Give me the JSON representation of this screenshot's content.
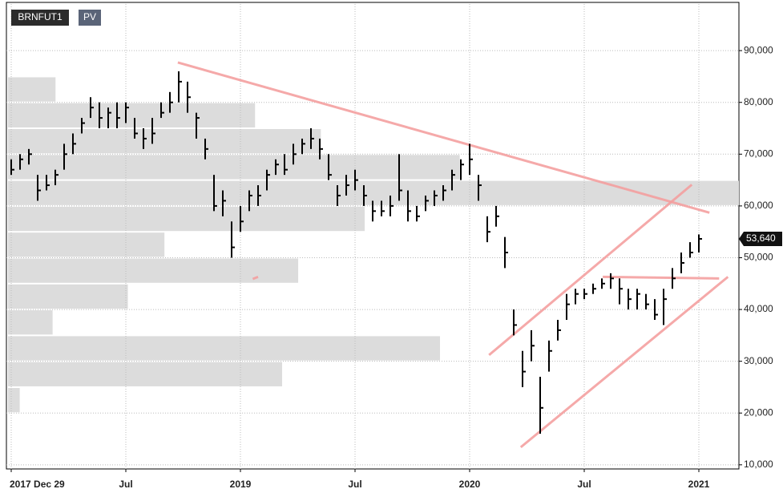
{
  "chart_data": {
    "type": "ohlc",
    "symbol": "BRNFUT1",
    "indicator": "PV",
    "categories": [
      "2017 Dec 29",
      null,
      null,
      null,
      null,
      null,
      null,
      null,
      null,
      null,
      null,
      null,
      null,
      "Jul",
      null,
      null,
      null,
      null,
      null,
      null,
      null,
      null,
      null,
      null,
      null,
      null,
      "2019",
      null,
      null,
      null,
      null,
      null,
      null,
      null,
      null,
      null,
      null,
      null,
      null,
      "Jul",
      null,
      null,
      null,
      null,
      null,
      null,
      null,
      null,
      null,
      null,
      null,
      null,
      "2020",
      null,
      null,
      null,
      null,
      null,
      null,
      null,
      null,
      null,
      null,
      null,
      null,
      "Jul",
      null,
      null,
      null,
      null,
      null,
      null,
      null,
      null,
      null,
      null,
      null,
      null,
      "2021",
      null,
      null,
      null,
      null
    ],
    "high": [
      69000,
      70000,
      71000,
      66000,
      66000,
      67000,
      72000,
      74000,
      77000,
      81000,
      80000,
      79000,
      80000,
      80000,
      77000,
      75000,
      77000,
      80000,
      82000,
      86000,
      84000,
      78000,
      73000,
      66000,
      63000,
      57000,
      60000,
      63000,
      64000,
      67000,
      69000,
      70000,
      72000,
      73000,
      75000,
      73000,
      70000,
      64000,
      66000,
      67000,
      64000,
      61000,
      61000,
      62000,
      70000,
      63000,
      60000,
      62000,
      63000,
      64000,
      67000,
      69000,
      72000,
      66000,
      58000,
      60000,
      54000,
      40000,
      32000,
      36000,
      27000,
      34000,
      38000,
      43000,
      44000,
      44000,
      45000,
      46000,
      47000,
      46000,
      44000,
      44000,
      43000,
      42000,
      44000,
      48000,
      51000,
      53000,
      54500,
      null,
      null,
      null,
      null
    ],
    "low": [
      66000,
      67000,
      68000,
      61000,
      63000,
      64000,
      67000,
      70000,
      74000,
      77000,
      75000,
      75000,
      75000,
      76000,
      73000,
      71000,
      72000,
      77000,
      78000,
      80000,
      78000,
      73000,
      69000,
      59000,
      58000,
      50000,
      55000,
      59000,
      60000,
      63000,
      66000,
      66000,
      68000,
      70000,
      71000,
      69000,
      65000,
      60000,
      62000,
      63000,
      60000,
      57000,
      58000,
      58000,
      61000,
      57000,
      57000,
      59000,
      60000,
      61000,
      63000,
      65000,
      66000,
      61000,
      53000,
      56000,
      48000,
      35000,
      25000,
      30000,
      16000,
      28000,
      34000,
      38000,
      41000,
      42000,
      43000,
      44000,
      44000,
      41000,
      40000,
      40000,
      40000,
      38000,
      37000,
      44000,
      47000,
      50000,
      51000,
      null,
      null,
      null,
      null
    ],
    "close": [
      67000,
      69000,
      70000,
      63000,
      64000,
      66000,
      70000,
      72000,
      76000,
      79000,
      77000,
      78000,
      77000,
      79000,
      74000,
      73000,
      74000,
      78000,
      80000,
      84000,
      81000,
      77000,
      71000,
      60000,
      61000,
      52000,
      57000,
      62000,
      62000,
      66000,
      68000,
      67000,
      70000,
      72000,
      73000,
      71000,
      66000,
      62000,
      64000,
      65000,
      62000,
      59000,
      59000,
      60000,
      63000,
      59000,
      58000,
      61000,
      62000,
      63000,
      66000,
      68000,
      69000,
      64000,
      55000,
      58000,
      51000,
      37000,
      28000,
      33000,
      21000,
      32000,
      36000,
      41000,
      43000,
      43000,
      44000,
      45000,
      46000,
      44000,
      42000,
      43000,
      41000,
      39000,
      42000,
      46000,
      49000,
      51000,
      53640,
      null,
      null,
      null,
      null
    ],
    "last_label": "53,640",
    "color": "#000000",
    "ylim": [
      9200,
      99000
    ],
    "yticks": [
      {
        "value": 10000,
        "label": "10,000"
      },
      {
        "value": 20000,
        "label": "20,000"
      },
      {
        "value": 30000,
        "label": "30,000"
      },
      {
        "value": 40000,
        "label": "40,000"
      },
      {
        "value": 50000,
        "label": "50,000"
      },
      {
        "value": 60000,
        "label": "60,000"
      },
      {
        "value": 70000,
        "label": "70,000"
      },
      {
        "value": 80000,
        "label": "80,000"
      },
      {
        "value": 90000,
        "label": "90,000"
      }
    ],
    "grid": true,
    "volume_profile": {
      "bins": [
        20000,
        25000,
        30000,
        35000,
        40000,
        45000,
        50000,
        55000,
        60000,
        65000,
        70000,
        75000,
        80000,
        85000
      ],
      "values": [
        1.6,
        37.5,
        59.1,
        6.1,
        16.4,
        39.7,
        21.4,
        48.8,
        100,
        61.8,
        42.8,
        33.8,
        6.5
      ],
      "color": "#dcdcdc"
    },
    "trend_lines": {
      "color": "#f4a0a0",
      "lines": [
        {
          "x": [
            18.9,
            79.2
          ],
          "y": [
            87700,
            58700
          ]
        },
        {
          "x": [
            54.2,
            77.2
          ],
          "y": [
            31200,
            64100
          ]
        },
        {
          "x": [
            57.8,
            81.3
          ],
          "y": [
            13400,
            46300
          ]
        },
        {
          "x": [
            67.1,
            80.3
          ],
          "y": [
            46300,
            46000
          ]
        },
        {
          "x": [
            27.4,
            28.0
          ],
          "y": [
            45900,
            46300
          ]
        }
      ]
    }
  }
}
